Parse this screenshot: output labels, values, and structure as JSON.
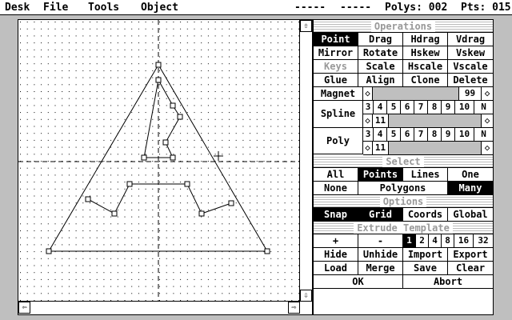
{
  "menu": {
    "items": [
      "Desk",
      "File",
      "Tools",
      "Object"
    ],
    "status1": "-----",
    "status2": "-----",
    "polys_label": "Polys: 002",
    "pts_label": "Pts: 015"
  },
  "scroll": {
    "up": "⇧",
    "down": "⇩",
    "left": "⇦",
    "right": "⇨"
  },
  "operations": {
    "header": "Operations",
    "rows": [
      [
        "Point",
        "Drag",
        "Hdrag",
        "Vdrag"
      ],
      [
        "Mirror",
        "Rotate",
        "Hskew",
        "Vskew"
      ],
      [
        "Keys",
        "Scale",
        "Hscale",
        "Vscale"
      ],
      [
        "Glue",
        "Align",
        "Clone",
        "Delete"
      ]
    ],
    "active": "Point",
    "disabled": "Keys",
    "magnet_label": "Magnet",
    "magnet_value": "99",
    "spline_label": "Spline",
    "spline_numbers": [
      "3",
      "4",
      "5",
      "6",
      "7",
      "8",
      "9",
      "10",
      "N"
    ],
    "spline_value": "11",
    "poly_label": "Poly",
    "poly_numbers": [
      "3",
      "4",
      "5",
      "6",
      "7",
      "8",
      "9",
      "10",
      "N"
    ],
    "poly_value": "11"
  },
  "select": {
    "header": "Select",
    "row1": [
      "All",
      "Points",
      "Lines",
      "One"
    ],
    "row2": [
      "None",
      "Polygons",
      "Many"
    ],
    "active": [
      "Points",
      "Many"
    ]
  },
  "options": {
    "header": "Options",
    "items": [
      "Snap",
      "Grid",
      "Coords",
      "Global"
    ],
    "active": [
      "Snap",
      "Grid"
    ]
  },
  "extrude": {
    "header": "Extrude Template",
    "plus": "+",
    "minus": "-",
    "values": [
      "1",
      "2",
      "4",
      "8",
      "16",
      "32"
    ],
    "active": "1"
  },
  "actions": {
    "row1": [
      "Hide",
      "Unhide",
      "Import",
      "Export"
    ],
    "row2": [
      "Load",
      "Merge",
      "Save",
      "Clear"
    ],
    "ok": "OK",
    "abort": "Abort"
  }
}
